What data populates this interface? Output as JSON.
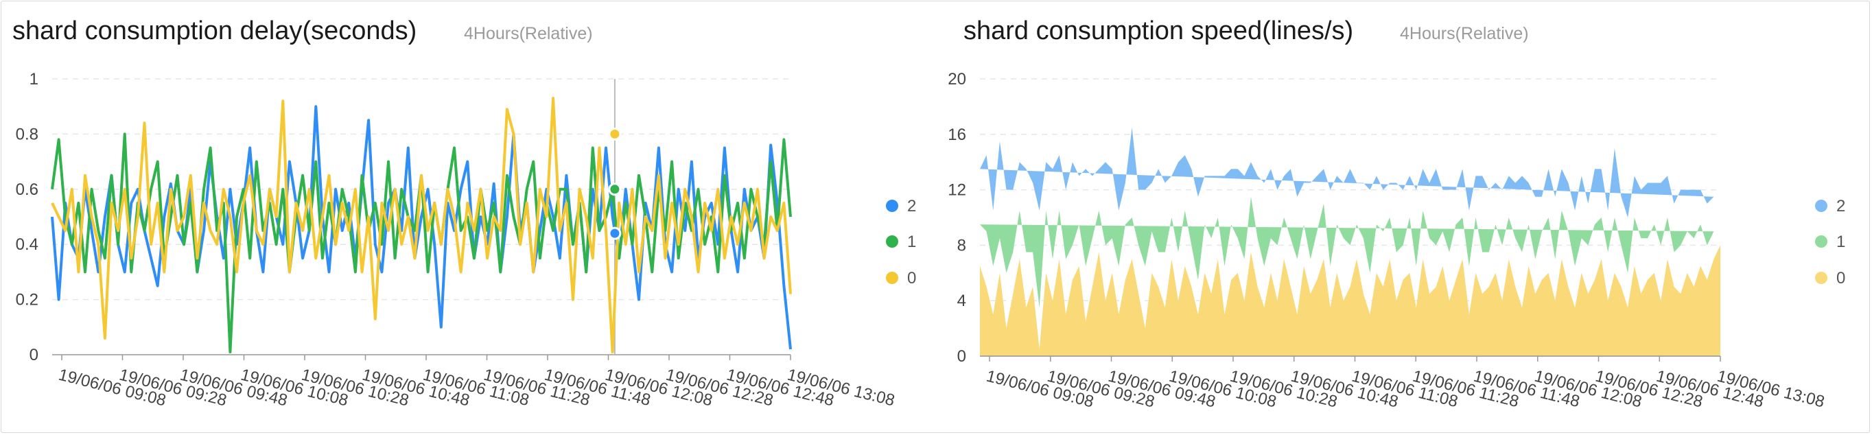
{
  "chart_data": [
    {
      "type": "line",
      "title": "shard consumption delay(seconds)",
      "time_range": "4Hours(Relative)",
      "xlabel": "",
      "ylabel": "",
      "ylim": [
        0,
        1
      ],
      "y_ticks": [
        "0",
        "0.2",
        "0.4",
        "0.6",
        "0.8",
        "1"
      ],
      "y_tick_values": [
        0,
        0.2,
        0.4,
        0.6,
        0.8,
        1
      ],
      "x_tick_labels": [
        "19/06/06 09:08",
        "19/06/06 09:28",
        "19/06/06 09:48",
        "19/06/06 10:08",
        "19/06/06 10:28",
        "19/06/06 10:48",
        "19/06/06 11:08",
        "19/06/06 11:28",
        "19/06/06 11:48",
        "19/06/06 12:08",
        "19/06/06 12:28",
        "19/06/06 12:48",
        "19/06/06 13:08"
      ],
      "legend": [
        "2",
        "1",
        "0"
      ],
      "hover_index": 0.762,
      "hover_values": {
        "2": 0.44,
        "1": 0.6,
        "0": 0.8
      },
      "series": [
        {
          "name": "2",
          "color": "#2f8ef5",
          "values": [
            0.5,
            0.2,
            0.55,
            0.4,
            0.35,
            0.6,
            0.45,
            0.3,
            0.5,
            0.65,
            0.4,
            0.3,
            0.55,
            0.6,
            0.45,
            0.35,
            0.25,
            0.5,
            0.62,
            0.45,
            0.4,
            0.6,
            0.3,
            0.45,
            0.7,
            0.5,
            0.35,
            0.6,
            0.4,
            0.55,
            0.75,
            0.45,
            0.3,
            0.6,
            0.5,
            0.4,
            0.7,
            0.55,
            0.35,
            0.45,
            0.9,
            0.5,
            0.3,
            0.6,
            0.45,
            0.55,
            0.35,
            0.6,
            0.85,
            0.4,
            0.3,
            0.55,
            0.6,
            0.45,
            0.75,
            0.35,
            0.5,
            0.6,
            0.4,
            0.1,
            0.55,
            0.45,
            0.6,
            0.7,
            0.35,
            0.5,
            0.4,
            0.62,
            0.3,
            0.5,
            0.8,
            0.45,
            0.55,
            0.3,
            0.45,
            0.6,
            0.5,
            0.35,
            0.65,
            0.4,
            0.55,
            0.3,
            0.6,
            0.45,
            0.75,
            0.5,
            0.35,
            0.6,
            0.4,
            0.2,
            0.55,
            0.45,
            0.75,
            0.4,
            0.3,
            0.6,
            0.45,
            0.7,
            0.35,
            0.5,
            0.55,
            0.4,
            0.75,
            0.45,
            0.3,
            0.6,
            0.45,
            0.5,
            0.35,
            0.76,
            0.55,
            0.25,
            0.02
          ]
        },
        {
          "name": "1",
          "color": "#2fb24c",
          "values": [
            0.6,
            0.78,
            0.5,
            0.4,
            0.55,
            0.3,
            0.6,
            0.45,
            0.35,
            0.65,
            0.4,
            0.8,
            0.3,
            0.55,
            0.45,
            0.6,
            0.7,
            0.35,
            0.5,
            0.65,
            0.4,
            0.55,
            0.3,
            0.6,
            0.75,
            0.45,
            0.55,
            0.01,
            0.5,
            0.6,
            0.35,
            0.7,
            0.45,
            0.55,
            0.4,
            0.6,
            0.3,
            0.5,
            0.65,
            0.45,
            0.7,
            0.35,
            0.55,
            0.4,
            0.6,
            0.5,
            0.3,
            0.65,
            0.45,
            0.55,
            0.4,
            0.7,
            0.35,
            0.6,
            0.5,
            0.45,
            0.65,
            0.3,
            0.55,
            0.4,
            0.6,
            0.75,
            0.45,
            0.5,
            0.35,
            0.6,
            0.45,
            0.55,
            0.3,
            0.65,
            0.5,
            0.4,
            0.6,
            0.7,
            0.35,
            0.55,
            0.45,
            0.6,
            0.6,
            0.4,
            0.55,
            0.3,
            0.75,
            0.45,
            0.5,
            0.6,
            0.35,
            0.55,
            0.4,
            0.65,
            0.5,
            0.3,
            0.6,
            0.45,
            0.7,
            0.35,
            0.55,
            0.45,
            0.6,
            0.4,
            0.5,
            0.3,
            0.65,
            0.45,
            0.55,
            0.35,
            0.6,
            0.5,
            0.4,
            0.7,
            0.45,
            0.78,
            0.5
          ]
        },
        {
          "name": "0",
          "color": "#f5c731",
          "values": [
            0.55,
            0.5,
            0.45,
            0.6,
            0.3,
            0.65,
            0.5,
            0.4,
            0.06,
            0.55,
            0.45,
            0.6,
            0.35,
            0.5,
            0.84,
            0.4,
            0.55,
            0.3,
            0.6,
            0.45,
            0.5,
            0.65,
            0.35,
            0.55,
            0.45,
            0.4,
            0.6,
            0.5,
            0.3,
            0.55,
            0.65,
            0.45,
            0.4,
            0.6,
            0.5,
            0.92,
            0.3,
            0.55,
            0.45,
            0.6,
            0.35,
            0.5,
            0.65,
            0.4,
            0.55,
            0.45,
            0.6,
            0.3,
            0.5,
            0.13,
            0.55,
            0.45,
            0.6,
            0.4,
            0.5,
            0.35,
            0.65,
            0.45,
            0.55,
            0.4,
            0.6,
            0.5,
            0.3,
            0.55,
            0.45,
            0.6,
            0.35,
            0.5,
            0.45,
            0.89,
            0.8,
            0.4,
            0.55,
            0.3,
            0.6,
            0.5,
            0.93,
            0.45,
            0.55,
            0.2,
            0.6,
            0.5,
            0.35,
            0.75,
            0.45,
            0.01,
            0.55,
            0.4,
            0.6,
            0.3,
            0.5,
            0.45,
            0.65,
            0.35,
            0.55,
            0.4,
            0.6,
            0.5,
            0.3,
            0.55,
            0.45,
            0.6,
            0.35,
            0.5,
            0.4,
            0.55,
            0.45,
            0.6,
            0.35,
            0.5,
            0.45,
            0.55,
            0.22
          ]
        }
      ]
    },
    {
      "type": "area",
      "stacked": true,
      "title": "shard consumption speed(lines/s)",
      "time_range": "4Hours(Relative)",
      "xlabel": "",
      "ylabel": "",
      "ylim": [
        0,
        20
      ],
      "y_ticks": [
        "0",
        "4",
        "8",
        "12",
        "16",
        "20"
      ],
      "y_tick_values": [
        0,
        4,
        8,
        12,
        16,
        20
      ],
      "x_tick_labels": [
        "19/06/06 09:08",
        "19/06/06 09:28",
        "19/06/06 09:48",
        "19/06/06 10:08",
        "19/06/06 10:28",
        "19/06/06 10:48",
        "19/06/06 11:08",
        "19/06/06 11:28",
        "19/06/06 11:48",
        "19/06/06 12:08",
        "19/06/06 12:28",
        "19/06/06 12:48",
        "19/06/06 13:08"
      ],
      "legend": [
        "2",
        "1",
        "0"
      ],
      "series": [
        {
          "name": "0",
          "color": "#f9d978",
          "values": [
            6.5,
            5,
            3,
            6,
            2,
            4.5,
            7,
            3.5,
            5,
            0.5,
            6,
            4,
            7,
            3,
            5.5,
            6.5,
            2.5,
            5,
            7.5,
            4,
            6,
            3,
            5.5,
            7,
            4.5,
            2,
            6,
            5,
            3.5,
            7,
            4,
            6.5,
            5,
            3,
            6,
            4.5,
            7,
            3,
            5.5,
            6,
            4,
            7.5,
            5,
            3.5,
            6,
            4,
            7,
            5,
            3,
            6.5,
            4.5,
            5.5,
            7,
            3.5,
            6,
            4,
            5,
            7,
            4.5,
            3,
            6,
            5,
            7,
            4,
            5.5,
            6,
            3.5,
            7,
            4.5,
            5,
            6.5,
            4,
            5.5,
            7,
            3,
            6,
            4.5,
            5,
            6,
            4,
            7,
            5,
            3.5,
            6.5,
            4.5,
            5.5,
            6,
            4,
            7,
            5,
            3.5,
            6,
            4.5,
            5.5,
            7,
            4,
            6,
            5,
            3.5,
            6.5,
            4.5,
            5.5,
            6,
            4,
            7,
            5,
            4.5,
            6,
            5,
            6.5,
            5.5,
            7,
            8
          ]
        },
        {
          "name": "1",
          "color": "#90dc9e",
          "values": [
            3,
            4,
            3.5,
            2.5,
            4,
            3,
            3.5,
            4,
            2.5,
            3,
            4.5,
            3,
            3.5,
            4,
            2.5,
            3,
            4,
            3.5,
            3,
            4,
            2.5,
            3.5,
            4,
            3,
            3.5,
            4.5,
            3,
            2.5,
            4,
            3,
            3.5,
            4,
            3,
            2.5,
            3.5,
            4,
            3,
            3.5,
            4,
            2.5,
            3,
            4,
            3.5,
            3,
            2.5,
            4,
            3,
            3.5,
            4,
            3,
            2.5,
            3.5,
            4,
            3,
            3.5,
            4.5,
            3,
            2.5,
            4,
            3,
            3.5,
            4,
            3,
            3.5,
            2.5,
            4,
            3,
            3.5,
            4,
            3,
            2.5,
            3.5,
            4,
            3,
            3.5,
            4,
            3,
            2.5,
            3.5,
            4,
            3,
            3.5,
            4,
            3,
            2.5,
            3.5,
            4,
            3,
            3.5,
            4,
            3,
            2.5,
            3.5,
            4,
            3,
            3.5,
            4,
            3,
            2.5,
            3.5,
            4,
            3,
            3.5,
            4,
            3,
            2.5,
            3.5,
            3,
            3.5,
            3,
            2.5,
            2
          ]
        },
        {
          "name": "2",
          "color": "#7fbcf6",
          "values": [
            4,
            5.5,
            4,
            7,
            6,
            4.5,
            3.5,
            6,
            5,
            7,
            3.5,
            6.5,
            4,
            5,
            6,
            3.5,
            7,
            4.5,
            3,
            6,
            5,
            4,
            3,
            6.5,
            4,
            5.5,
            3.5,
            6,
            5,
            3,
            6.5,
            4,
            5.5,
            6,
            3.5,
            4.5,
            3,
            6.5,
            4,
            5,
            6,
            2.5,
            4.5,
            6,
            5,
            4,
            3,
            5,
            4.5,
            3,
            5.5,
            4,
            2.5,
            5.5,
            3.5,
            4,
            5.5,
            3,
            4,
            6,
            3.5,
            3,
            2.5,
            5,
            4,
            3,
            5.5,
            3,
            4,
            5.5,
            3,
            4.5,
            2.5,
            3.5,
            4,
            3,
            5.5,
            4.5,
            3,
            4,
            3,
            4,
            5.5,
            3,
            4.5,
            2.5,
            3.5,
            4.5,
            3,
            3.5,
            4,
            4.5,
            3,
            4,
            3.5,
            3,
            5,
            3.5,
            4,
            3,
            3.5,
            4,
            3,
            4.5,
            3,
            3.5,
            4,
            3,
            3.5,
            2.5,
            3,
            2.5,
            3.5
          ]
        }
      ]
    }
  ]
}
